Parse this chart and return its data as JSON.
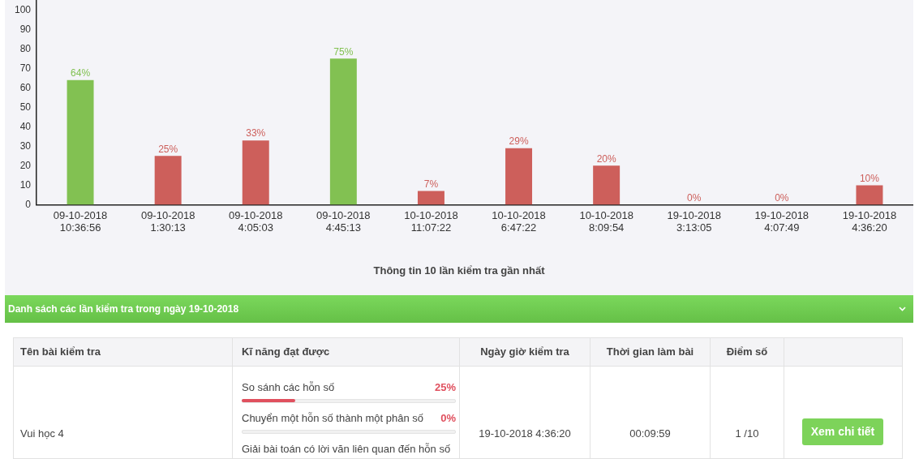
{
  "chart_data": [
    {
      "type": "bar",
      "title": "Thông tin 10 lần kiểm tra gần nhất",
      "categories": [
        "09-10-2018 10:36:56",
        "09-10-2018 1:30:13",
        "09-10-2018 4:05:03",
        "09-10-2018 4:45:13",
        "10-10-2018 11:07:22",
        "10-10-2018 6:47:22",
        "10-10-2018 8:09:54",
        "19-10-2018 3:13:05",
        "19-10-2018 4:07:49",
        "19-10-2018 4:36:20"
      ],
      "values": [
        64,
        25,
        33,
        75,
        7,
        29,
        20,
        0,
        0,
        10
      ],
      "colors": [
        "#82c152",
        "#cd5f5b",
        "#cd5f5b",
        "#82c152",
        "#cd5f5b",
        "#cd5f5b",
        "#cd5f5b",
        "#cd5f5b",
        "#cd5f5b",
        "#cd5f5b"
      ],
      "value_labels": [
        "64%",
        "25%",
        "33%",
        "75%",
        "7%",
        "29%",
        "20%",
        "0%",
        "0%",
        "10%"
      ],
      "ylim": [
        0,
        105
      ],
      "yticks": [
        0,
        10,
        20,
        30,
        40,
        50,
        60,
        70,
        80,
        90,
        100
      ]
    },
    {
      "type": "other",
      "title": "Danh sách các lần kiểm tra trong ngày 19-10-2018",
      "annotations": [
        "Tên bài kiểm tra",
        "Kĩ năng đạt được",
        "Ngày giờ kiểm tra",
        "Thời gian làm bài",
        "Điểm số",
        "Vui học 4",
        "19-10-2018 4:36:20",
        "00:09:59",
        "1 /10",
        "Xem chi tiết"
      ],
      "categories": [
        "So sánh các hỗn số",
        "Chuyển một hỗn số thành một phân số",
        "Giải bài toán có lời văn liên quan đến hỗn số"
      ],
      "values": [
        25,
        0,
        null
      ],
      "value_labels": [
        "25%",
        "0%",
        null
      ]
    }
  ]
}
